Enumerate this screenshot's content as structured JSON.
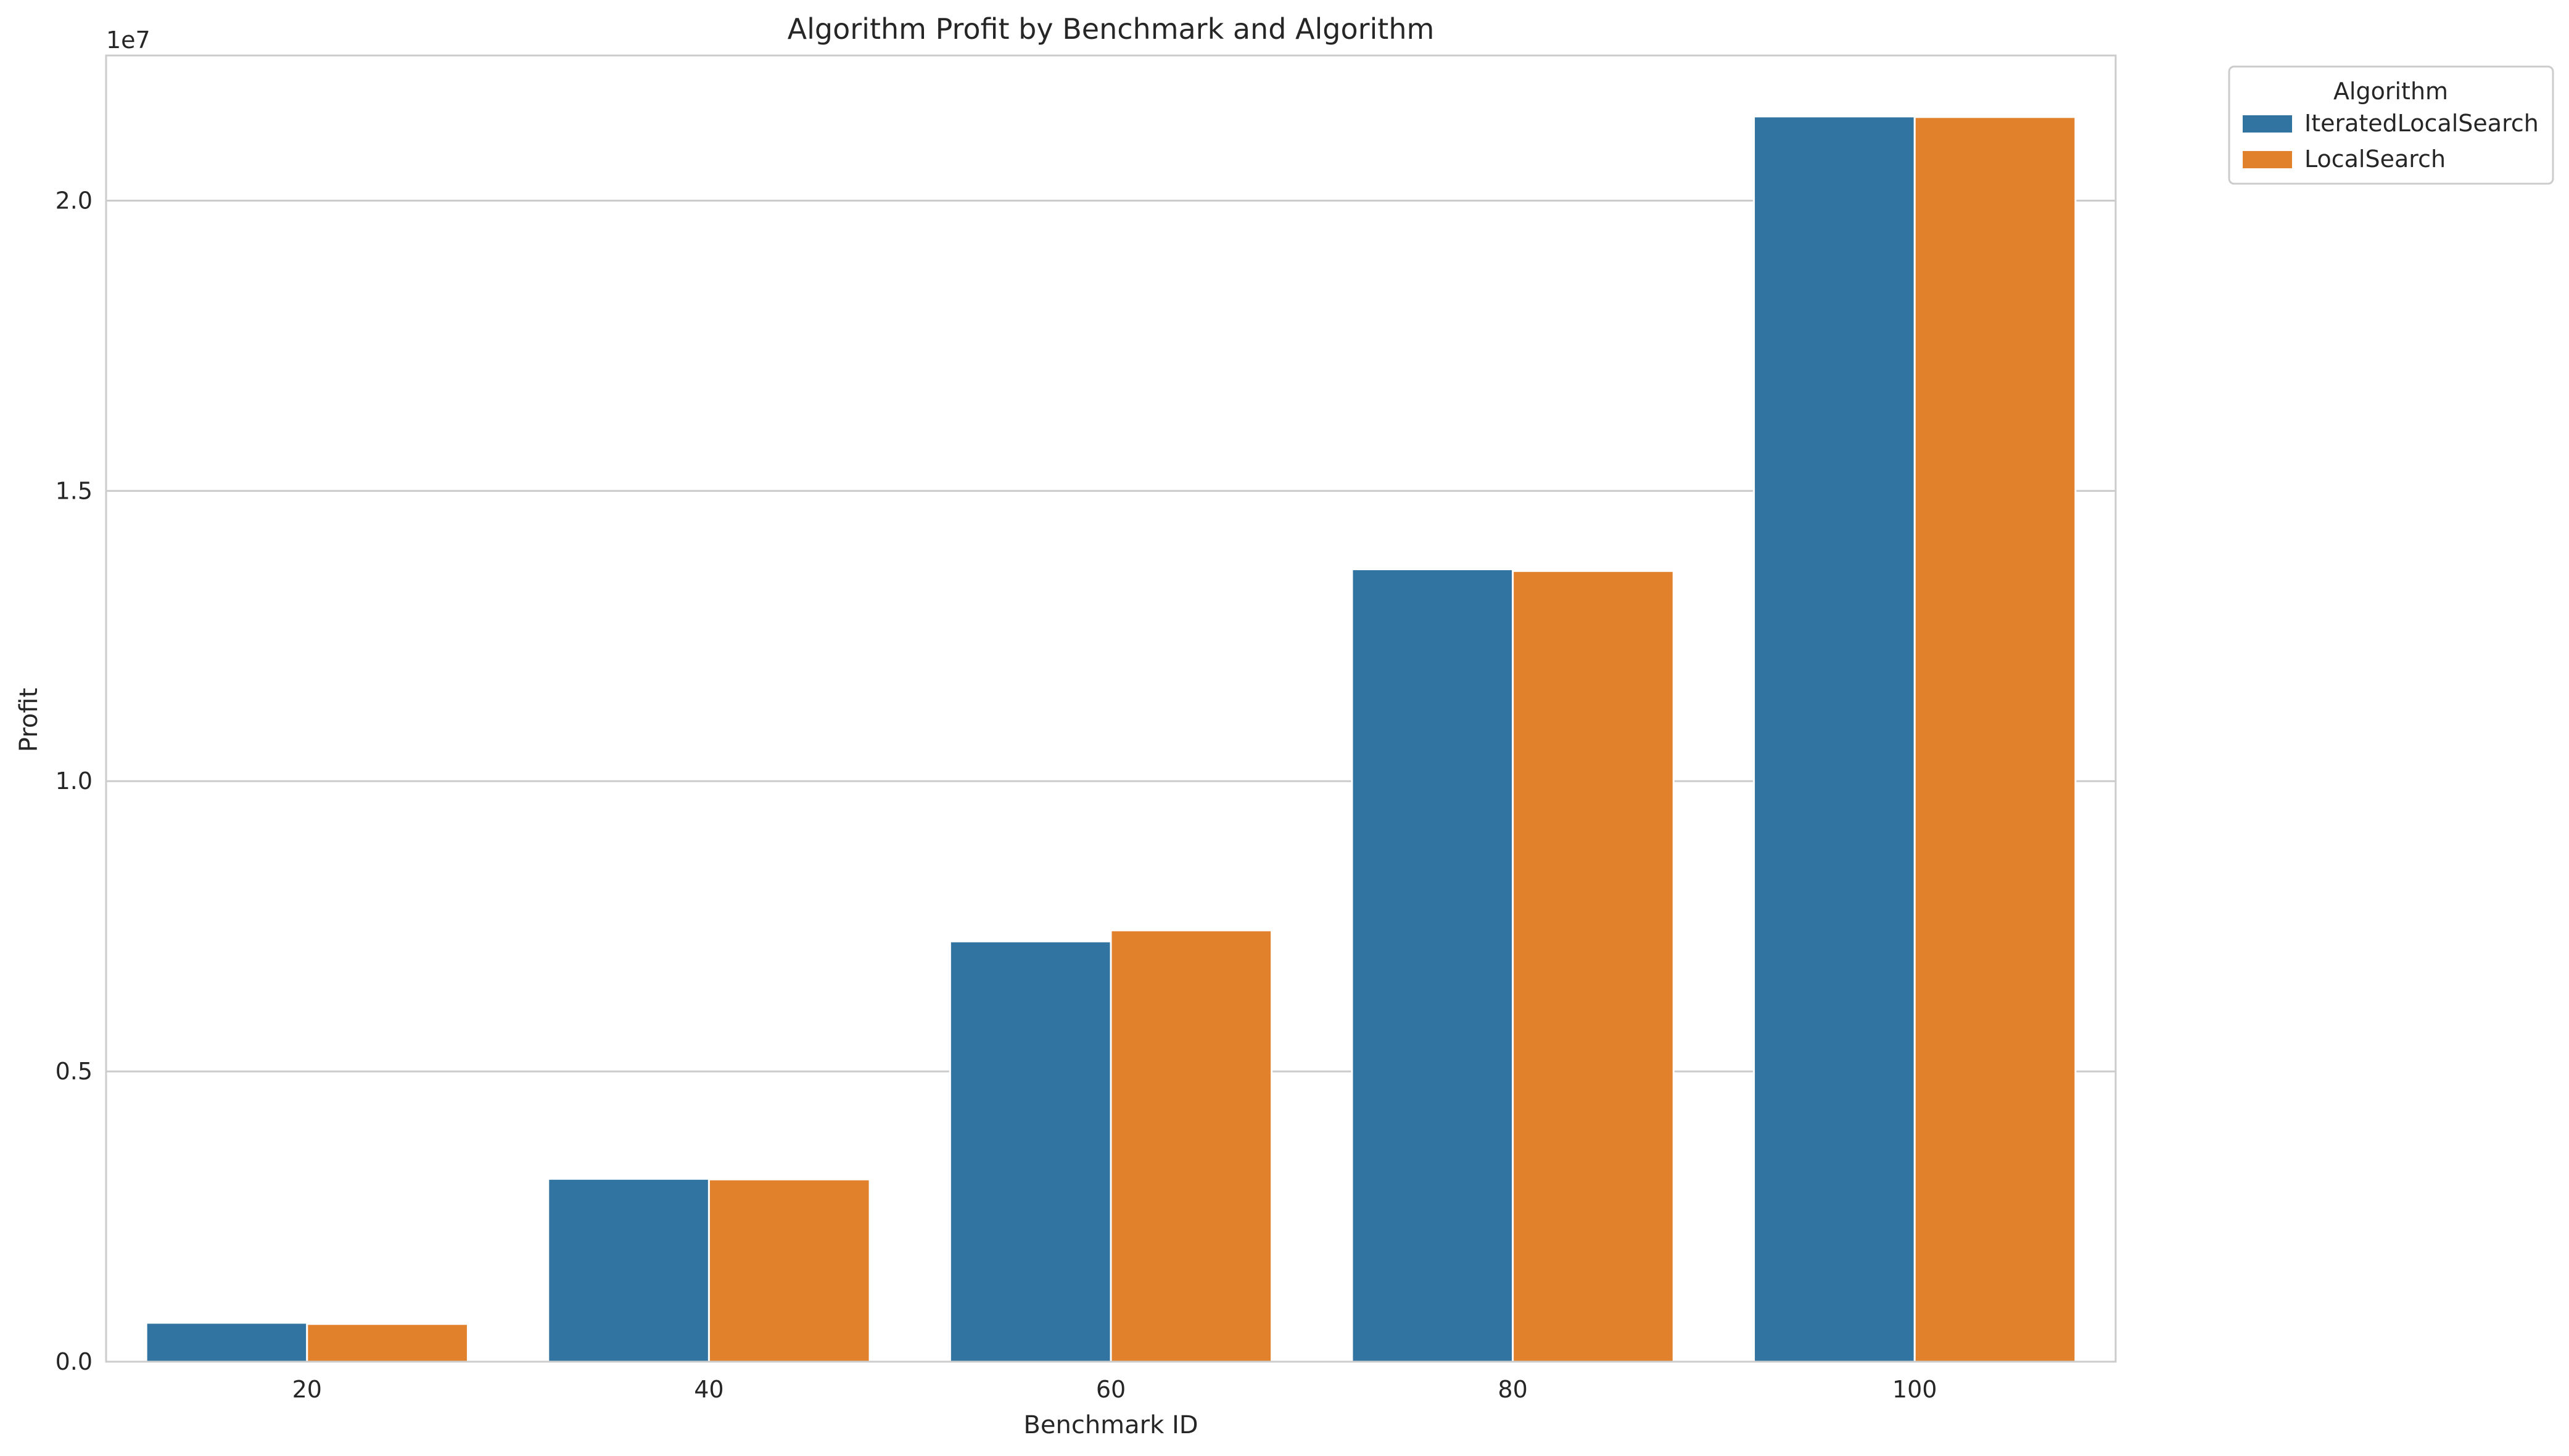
{
  "chart_data": {
    "type": "bar",
    "title": "Algorithm Profit by Benchmark and Algorithm",
    "xlabel": "Benchmark ID",
    "ylabel": "Profit",
    "y_offset_label": "1e7",
    "y_scale": 10000000,
    "categories": [
      "20",
      "40",
      "60",
      "80",
      "100"
    ],
    "ylim": [
      0,
      22500000
    ],
    "yticks": [
      0,
      5000000,
      10000000,
      15000000,
      20000000
    ],
    "ytick_labels": [
      "0.0",
      "0.5",
      "1.0",
      "1.5",
      "2.0"
    ],
    "grid": "horizontal",
    "legend": {
      "title": "Algorithm",
      "placement": "outside-top-right"
    },
    "series": [
      {
        "name": "IteratedLocalSearch",
        "color": "#3274a1",
        "values": [
          670000,
          3150000,
          7240000,
          13650000,
          21450000
        ]
      },
      {
        "name": "LocalSearch",
        "color": "#e1812c",
        "values": [
          650000,
          3140000,
          7430000,
          13620000,
          21440000
        ]
      }
    ]
  }
}
